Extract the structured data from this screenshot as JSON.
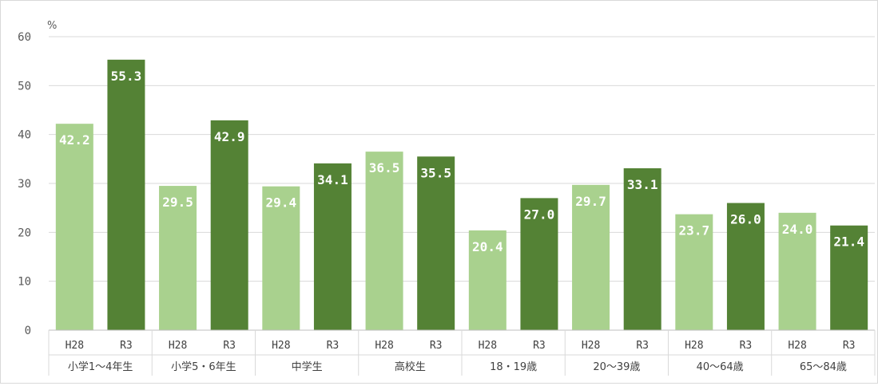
{
  "chart_data": {
    "type": "bar",
    "unit_label": "%",
    "ylim": [
      0,
      60
    ],
    "y_ticks": [
      "0",
      "10",
      "20",
      "30",
      "40",
      "50",
      "60"
    ],
    "categories": [
      "小学1～4年生",
      "小学5・6年生",
      "中学生",
      "高校生",
      "18・19歳",
      "20～39歳",
      "40～64歳",
      "65～84歳"
    ],
    "series": [
      {
        "name": "H28",
        "color": "#a9d18e",
        "values": [
          42.2,
          29.5,
          29.4,
          36.5,
          20.4,
          29.7,
          23.7,
          24.0
        ],
        "labels": [
          "42.2",
          "29.5",
          "29.4",
          "36.5",
          "20.4",
          "29.7",
          "23.7",
          "24.0"
        ]
      },
      {
        "name": "R3",
        "color": "#548235",
        "values": [
          55.3,
          42.9,
          34.1,
          35.5,
          27.0,
          33.1,
          26.0,
          21.4
        ],
        "labels": [
          "55.3",
          "42.9",
          "34.1",
          "35.5",
          "27.0",
          "33.1",
          "26.0",
          "21.4"
        ]
      }
    ],
    "grid": true,
    "legend": "none"
  }
}
